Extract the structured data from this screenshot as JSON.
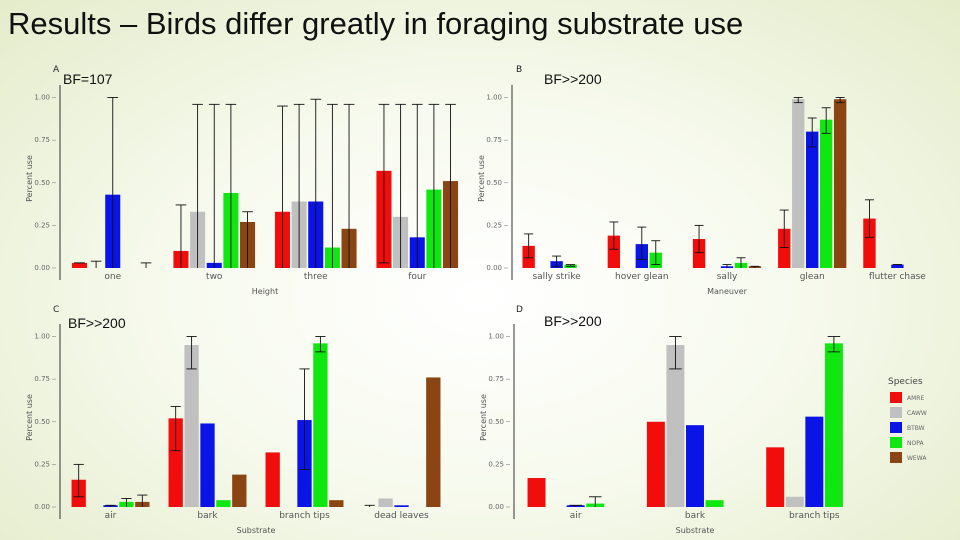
{
  "slide": {
    "title": "Results – Birds differ greatly in foraging substrate use"
  },
  "colors": {
    "series": [
      "#f20d0d",
      "#c0c0c0",
      "#0a14e6",
      "#10e610",
      "#8b4513"
    ]
  },
  "legend": {
    "title": "Species",
    "entries": [
      "AMRE",
      "CAWW",
      "BTBW",
      "NOPA",
      "WEWA"
    ]
  },
  "chart_data": [
    {
      "panel": "A",
      "bf_label": "BF=107",
      "type": "bar",
      "xlabel": "Height",
      "ylabel": "Percent use",
      "yticks": [
        "0.00",
        "0.25",
        "0.50",
        "0.75",
        "1.00"
      ],
      "ylim": [
        0,
        1.05
      ],
      "categories": [
        "one",
        "two",
        "three",
        "four"
      ],
      "series": [
        {
          "values": [
            0.03,
            0.1,
            0.33,
            0.57
          ],
          "err_hi": [
            0.03,
            0.37,
            0.95,
            0.96
          ],
          "err_lo": [
            0.03,
            0.0,
            0.0,
            0.03
          ]
        },
        {
          "values": [
            0.0,
            0.33,
            0.39,
            0.3
          ],
          "err_hi": [
            0.04,
            0.96,
            0.96,
            0.96
          ],
          "err_lo": [
            0.0,
            0.0,
            0.0,
            0.0
          ]
        },
        {
          "values": [
            0.43,
            0.03,
            0.39,
            0.18
          ],
          "err_hi": [
            1.0,
            0.96,
            0.99,
            0.96
          ],
          "err_lo": [
            0.0,
            0.0,
            0.0,
            0.0
          ]
        },
        {
          "values": [
            0.0,
            0.44,
            0.12,
            0.46
          ],
          "err_hi": [
            0.0,
            0.96,
            0.96,
            0.96
          ],
          "err_lo": [
            0.0,
            0.0,
            0.0,
            0.0
          ]
        },
        {
          "values": [
            0.0,
            0.27,
            0.23,
            0.51
          ],
          "err_hi": [
            0.03,
            0.33,
            0.96,
            0.96
          ],
          "err_lo": [
            0.0,
            0.0,
            0.0,
            0.0
          ]
        }
      ]
    },
    {
      "panel": "B",
      "bf_label": "BF>>200",
      "type": "bar",
      "xlabel": "Maneuver",
      "ylabel": "Percent use",
      "yticks": [
        "0.00",
        "0.25",
        "0.50",
        "0.75",
        "1.00"
      ],
      "ylim": [
        0,
        1.05
      ],
      "categories": [
        "sally strike",
        "hover glean",
        "sally",
        "glean",
        "flutter chase"
      ],
      "series": [
        {
          "values": [
            0.13,
            0.19,
            0.17,
            0.23,
            0.29
          ],
          "err_hi": [
            0.2,
            0.27,
            0.25,
            0.34,
            0.4
          ],
          "err_lo": [
            0.06,
            0.11,
            0.09,
            0.12,
            0.18
          ]
        },
        {
          "values": [
            0.0,
            0.0,
            0.0,
            0.99,
            0.0
          ],
          "err_hi": [
            0.0,
            0.0,
            0.0,
            1.0,
            0.0
          ],
          "err_lo": [
            0.0,
            0.0,
            0.0,
            0.97,
            0.0
          ]
        },
        {
          "values": [
            0.04,
            0.14,
            0.01,
            0.8,
            0.02
          ],
          "err_hi": [
            0.07,
            0.24,
            0.02,
            0.88,
            0.02
          ],
          "err_lo": [
            0.01,
            0.05,
            0.0,
            0.71,
            0.02
          ]
        },
        {
          "values": [
            0.02,
            0.09,
            0.03,
            0.87,
            0.0
          ],
          "err_hi": [
            0.02,
            0.16,
            0.06,
            0.94,
            0.0
          ],
          "err_lo": [
            0.01,
            0.02,
            0.0,
            0.79,
            0.0
          ]
        },
        {
          "values": [
            0.0,
            0.0,
            0.01,
            0.99,
            0.0
          ],
          "err_hi": [
            0.0,
            0.0,
            0.01,
            1.0,
            0.0
          ],
          "err_lo": [
            0.0,
            0.0,
            0.0,
            0.97,
            0.0
          ]
        }
      ]
    },
    {
      "panel": "C",
      "bf_label": "BF>>200",
      "type": "bar",
      "xlabel": "Substrate",
      "ylabel": "Percent use",
      "yticks": [
        "0.00",
        "0.25",
        "0.50",
        "0.75",
        "1.00"
      ],
      "ylim": [
        0,
        1.05
      ],
      "categories": [
        "air",
        "bark",
        "branch tips",
        "dead leaves"
      ],
      "series": [
        {
          "values": [
            0.16,
            0.52,
            0.32,
            0.0
          ],
          "err_hi": [
            0.25,
            0.59,
            0.0,
            0.01
          ],
          "err_lo": [
            0.06,
            0.33,
            0.0,
            0.0
          ]
        },
        {
          "values": [
            0.0,
            0.95,
            0.0,
            0.05
          ],
          "err_hi": [
            0.0,
            1.0,
            0.0,
            0.0
          ],
          "err_lo": [
            0.0,
            0.81,
            0.0,
            0.0
          ]
        },
        {
          "values": [
            0.01,
            0.49,
            0.51,
            0.01
          ],
          "err_hi": [
            0.01,
            0.0,
            0.81,
            0.0
          ],
          "err_lo": [
            0.0,
            0.0,
            0.22,
            0.0
          ]
        },
        {
          "values": [
            0.03,
            0.04,
            0.96,
            0.0
          ],
          "err_hi": [
            0.05,
            0.0,
            1.0,
            0.0
          ],
          "err_lo": [
            0.0,
            0.0,
            0.91,
            0.0
          ]
        },
        {
          "values": [
            0.03,
            0.19,
            0.04,
            0.76
          ],
          "err_hi": [
            0.07,
            0.0,
            0.0,
            0.0
          ],
          "err_lo": [
            0.0,
            0.0,
            0.0,
            0.0
          ]
        }
      ]
    },
    {
      "panel": "D",
      "bf_label": "BF>>200",
      "type": "bar",
      "xlabel": "Substrate",
      "ylabel": "Percent use",
      "yticks": [
        "0.00",
        "0.25",
        "0.50",
        "0.75",
        "1.00"
      ],
      "ylim": [
        0,
        1.05
      ],
      "categories": [
        "air",
        "bark",
        "branch tips"
      ],
      "series": [
        {
          "values": [
            0.17,
            0.5,
            0.35
          ],
          "err_hi": [
            0.0,
            0.0,
            0.0
          ],
          "err_lo": [
            0.0,
            0.0,
            0.0
          ]
        },
        {
          "values": [
            0.0,
            0.95,
            0.06
          ],
          "err_hi": [
            0.0,
            1.0,
            0.0
          ],
          "err_lo": [
            0.0,
            0.81,
            0.0
          ]
        },
        {
          "values": [
            0.01,
            0.48,
            0.53
          ],
          "err_hi": [
            0.01,
            0.0,
            0.0
          ],
          "err_lo": [
            0.0,
            0.0,
            0.0
          ]
        },
        {
          "values": [
            0.02,
            0.04,
            0.96
          ],
          "err_hi": [
            0.06,
            0.0,
            1.0
          ],
          "err_lo": [
            0.0,
            0.0,
            0.91
          ]
        },
        {
          "values": [
            0.0,
            0.0,
            0.0
          ],
          "err_hi": [
            0.0,
            0.0,
            0.0
          ],
          "err_lo": [
            0.0,
            0.0,
            0.0
          ]
        }
      ]
    }
  ]
}
